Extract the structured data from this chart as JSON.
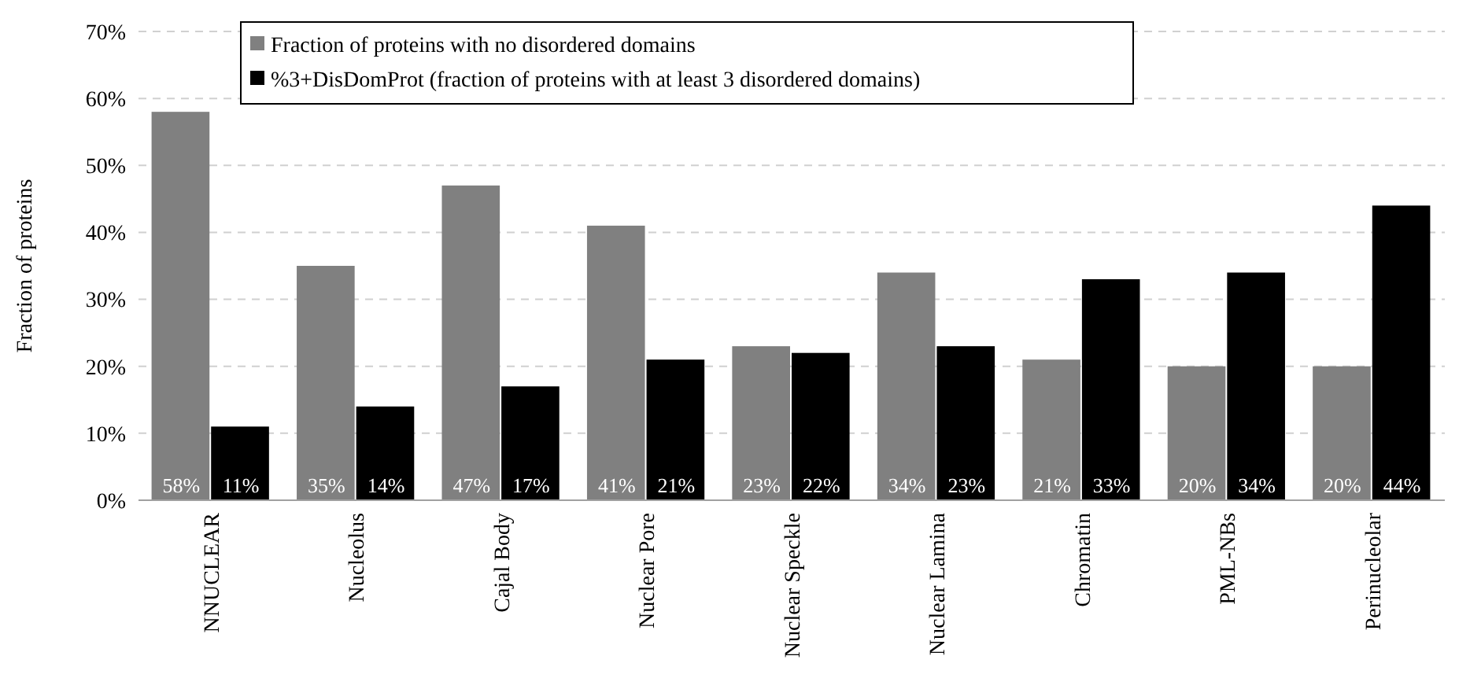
{
  "chart_data": {
    "type": "bar",
    "ylabel": "Fraction of proteins",
    "categories": [
      "NNUCLEAR",
      "Nucleolus",
      "Cajal Body",
      "Nuclear Pore",
      "Nuclear Speckle",
      "Nuclear Lamina",
      "Chromatin",
      "PML-NBs",
      "Perinucleolar"
    ],
    "series": [
      {
        "name": "Fraction of proteins with no disordered domains",
        "color": "#808080",
        "values": [
          58,
          35,
          47,
          41,
          23,
          34,
          21,
          20,
          20
        ],
        "value_labels": [
          "58%",
          "35%",
          "47%",
          "41%",
          "23%",
          "34%",
          "21%",
          "20%",
          "20%"
        ]
      },
      {
        "name": "%3+DisDomProt (fraction of proteins with at least 3 disordered domains)",
        "color": "#000000",
        "values": [
          11,
          14,
          17,
          21,
          22,
          23,
          33,
          34,
          44
        ],
        "value_labels": [
          "11%",
          "14%",
          "17%",
          "21%",
          "22%",
          "23%",
          "33%",
          "34%",
          "44%"
        ]
      }
    ],
    "ylim": [
      0,
      70
    ],
    "yticks": [
      {
        "value": 0,
        "label": "0%"
      },
      {
        "value": 10,
        "label": "10%"
      },
      {
        "value": 20,
        "label": "20%"
      },
      {
        "value": 30,
        "label": "30%"
      },
      {
        "value": 40,
        "label": "40%"
      },
      {
        "value": 50,
        "label": "50%"
      },
      {
        "value": 60,
        "label": "60%"
      },
      {
        "value": 70,
        "label": "70%"
      }
    ],
    "grid": "y",
    "legend": "top left"
  }
}
